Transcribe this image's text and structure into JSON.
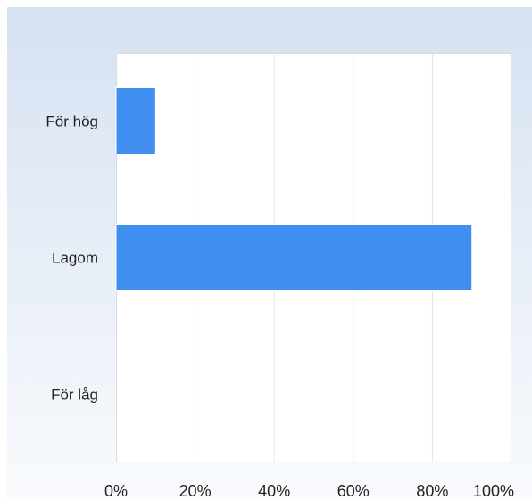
{
  "chart_data": {
    "type": "bar",
    "orientation": "horizontal",
    "categories": [
      "För hög",
      "Lagom",
      "För låg"
    ],
    "values": [
      10,
      90,
      0
    ],
    "xlim": [
      0,
      100
    ],
    "xticks": [
      0,
      20,
      40,
      60,
      80,
      100
    ],
    "xtick_labels": [
      "0%",
      "20%",
      "40%",
      "60%",
      "80%",
      "100%"
    ],
    "title": "",
    "xlabel": "",
    "ylabel": "",
    "grid": true,
    "legend": "none",
    "bar_color": "#3f8ef0"
  }
}
